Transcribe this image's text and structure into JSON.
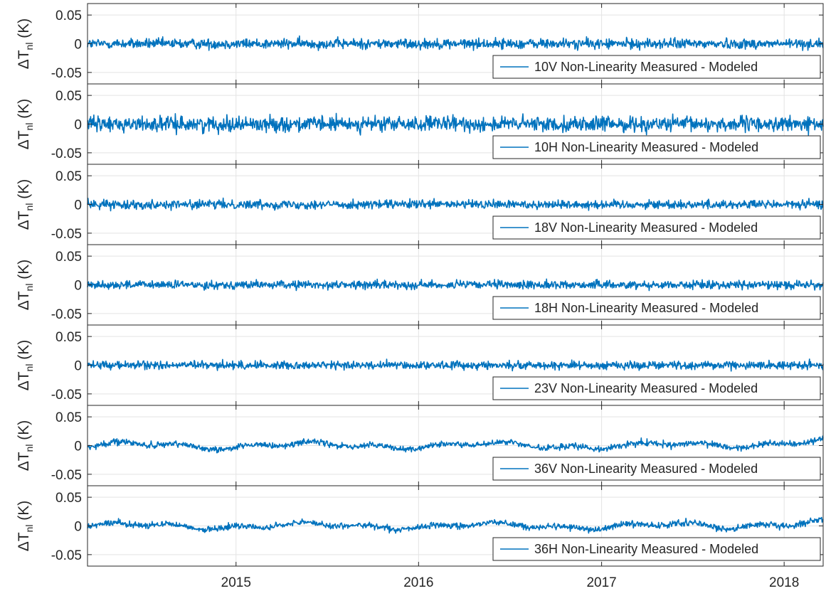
{
  "chart_data": {
    "type": "line",
    "layout": "stacked-subplots",
    "shared_x": {
      "ticks": [
        {
          "value": "2015-01-01",
          "label": "2015"
        },
        {
          "value": "2016-01-01",
          "label": "2016"
        },
        {
          "value": "2017-01-01",
          "label": "2017"
        },
        {
          "value": "2018-01-01",
          "label": "2018"
        }
      ],
      "xlim": [
        "2014-03-10",
        "2018-03-20"
      ],
      "grid": true
    },
    "ylim": [
      -0.07,
      0.07
    ],
    "yticks": [
      {
        "value": 0.05,
        "label": "0.05"
      },
      {
        "value": 0,
        "label": "0"
      },
      {
        "value": -0.05,
        "label": "-0.05"
      }
    ],
    "ylabel": {
      "prefix": "ΔT",
      "subscript": "nl",
      "suffix": " (K)"
    },
    "series_color": "#0072BD",
    "legend_position": "bottom-right",
    "panels": [
      {
        "legend": "10V Non-Linearity Measured - Modeled",
        "noise": 0.0075
      },
      {
        "legend": "10H Non-Linearity Measured - Modeled",
        "noise": 0.011
      },
      {
        "legend": "18V Non-Linearity Measured - Modeled",
        "noise": 0.0065
      },
      {
        "legend": "18H Non-Linearity Measured - Modeled",
        "noise": 0.006
      },
      {
        "legend": "23V Non-Linearity Measured - Modeled",
        "noise": 0.006
      },
      {
        "legend": "36V Non-Linearity Measured - Modeled",
        "noise": 0.0045
      },
      {
        "legend": "36H Non-Linearity Measured - Modeled",
        "noise": 0.0045
      }
    ]
  }
}
